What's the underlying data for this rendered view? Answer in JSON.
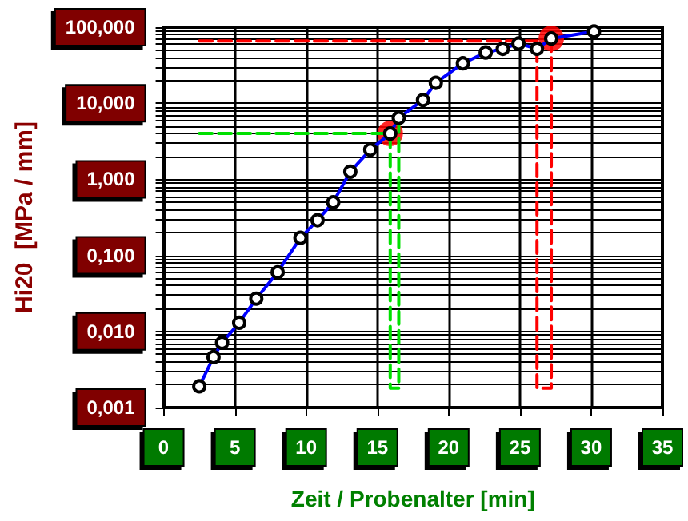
{
  "chart_data": {
    "type": "line",
    "xlabel": "Zeit / Probenalter [min]",
    "ylabel": "Hi20  [MPa / mm]",
    "log": "y",
    "grid": true,
    "xlim": [
      0,
      35
    ],
    "xticks": [
      0,
      5,
      10,
      15,
      20,
      25,
      30,
      35
    ],
    "ylim": [
      0.001,
      100
    ],
    "yticks": [
      {
        "value": 0.001,
        "label": "0,001"
      },
      {
        "value": 0.002,
        "label": null
      },
      {
        "value": 0.003,
        "label": null
      },
      {
        "value": 0.004,
        "label": null
      },
      {
        "value": 0.005,
        "label": null
      },
      {
        "value": 0.006,
        "label": null
      },
      {
        "value": 0.007,
        "label": null
      },
      {
        "value": 0.008,
        "label": null
      },
      {
        "value": 0.009,
        "label": null
      },
      {
        "value": 0.01,
        "label": "0,010"
      },
      {
        "value": 0.02,
        "label": null
      },
      {
        "value": 0.03,
        "label": null
      },
      {
        "value": 0.04,
        "label": null
      },
      {
        "value": 0.05,
        "label": null
      },
      {
        "value": 0.06,
        "label": null
      },
      {
        "value": 0.07,
        "label": null
      },
      {
        "value": 0.08,
        "label": null
      },
      {
        "value": 0.09,
        "label": null
      },
      {
        "value": 0.1,
        "label": "0,100"
      },
      {
        "value": 0.2,
        "label": null
      },
      {
        "value": 0.3,
        "label": null
      },
      {
        "value": 0.4,
        "label": null
      },
      {
        "value": 0.5,
        "label": null
      },
      {
        "value": 0.6,
        "label": null
      },
      {
        "value": 0.7,
        "label": null
      },
      {
        "value": 0.8,
        "label": null
      },
      {
        "value": 0.9,
        "label": null
      },
      {
        "value": 1,
        "label": "1,000"
      },
      {
        "value": 2,
        "label": null
      },
      {
        "value": 3,
        "label": null
      },
      {
        "value": 4,
        "label": null
      },
      {
        "value": 5,
        "label": null
      },
      {
        "value": 6,
        "label": null
      },
      {
        "value": 7,
        "label": null
      },
      {
        "value": 8,
        "label": null
      },
      {
        "value": 9,
        "label": null
      },
      {
        "value": 10,
        "label": "10,000"
      },
      {
        "value": 20,
        "label": null
      },
      {
        "value": 30,
        "label": null
      },
      {
        "value": 40,
        "label": null
      },
      {
        "value": 50,
        "label": null
      },
      {
        "value": 60,
        "label": null
      },
      {
        "value": 70,
        "label": null
      },
      {
        "value": 80,
        "label": null
      },
      {
        "value": 90,
        "label": null
      },
      {
        "value": 100,
        "label": "100,000"
      }
    ],
    "series": [
      {
        "color": "#00e000",
        "line_style": "dashed",
        "marker": "none",
        "x": [
          2.5,
          15.9,
          15.9,
          16.5,
          16.5
        ],
        "values": [
          4,
          4,
          0.0018,
          0.0018,
          6.4
        ]
      },
      {
        "color": "#ff0000",
        "line_style": "dashed",
        "marker": "none",
        "x": [
          2.5,
          26.2,
          26.2,
          27.2,
          27.2
        ],
        "values": [
          66,
          66,
          0.0018,
          0.0018,
          71
        ]
      },
      {
        "type": "scatter",
        "color": "#ff0000",
        "marker": "circle",
        "x": [
          15.9,
          27.2
        ],
        "values": [
          4,
          71
        ]
      },
      {
        "color": "#0000ff",
        "line_style": "solid",
        "marker": "circle",
        "x": [
          2.5,
          3.5,
          4.1,
          5.3,
          6.5,
          8.0,
          9.6,
          10.8,
          11.9,
          13.1,
          14.5,
          15.9,
          16.5,
          18.2,
          19.1,
          21.0,
          22.6,
          23.8,
          24.9,
          26.2,
          27.2,
          30.2
        ],
        "values": [
          0.0019,
          0.0046,
          0.0071,
          0.013,
          0.027,
          0.06,
          0.17,
          0.29,
          0.5,
          1.26,
          2.45,
          4,
          6.4,
          11,
          18.6,
          33.5,
          46.5,
          52,
          61,
          52,
          71,
          88
        ]
      }
    ]
  }
}
